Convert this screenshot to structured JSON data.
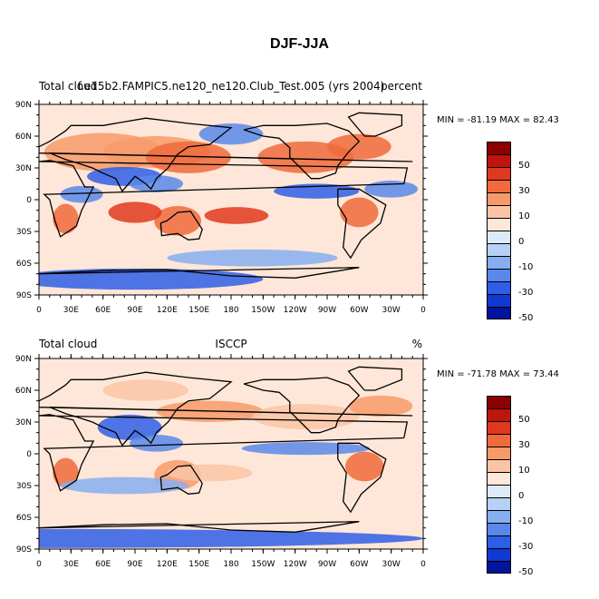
{
  "title": "DJF-JJA",
  "chart_data": [
    {
      "type": "heatmap",
      "panel_header_left": "Total cloud",
      "panel_header_center": "f.e15b2.FAMPIC5.ne120_ne120.Club_Test.005 (yrs 2004)",
      "panel_header_right": "percent",
      "min_label": "MIN = -81.19",
      "max_label": "MAX = 82.43",
      "x_ticks": [
        "0",
        "30E",
        "60E",
        "90E",
        "120E",
        "150E",
        "180",
        "150W",
        "120W",
        "90W",
        "60W",
        "30W",
        "0"
      ],
      "y_ticks": [
        "90N",
        "60N",
        "30N",
        "0",
        "30S",
        "60S",
        "90S"
      ],
      "xlim": [
        0,
        360
      ],
      "ylim": [
        -90,
        90
      ]
    },
    {
      "type": "heatmap",
      "panel_header_left": "Total cloud",
      "panel_header_center": "ISCCP",
      "panel_header_right": "%",
      "min_label": "MIN = -71.78",
      "max_label": "MAX = 73.44",
      "x_ticks": [
        "0",
        "30E",
        "60E",
        "90E",
        "120E",
        "150E",
        "180",
        "150W",
        "120W",
        "90W",
        "60W",
        "30W",
        "0"
      ],
      "y_ticks": [
        "90N",
        "60N",
        "30N",
        "0",
        "30S",
        "60S",
        "90S"
      ],
      "xlim": [
        0,
        360
      ],
      "ylim": [
        -90,
        90
      ]
    }
  ],
  "legend": {
    "labels": [
      "50",
      "30",
      "10",
      "0",
      "-10",
      "-30",
      "-50"
    ],
    "colors": [
      "#8b0000",
      "#c1140f",
      "#e0381e",
      "#f06a3c",
      "#f79a6a",
      "#fbc4a6",
      "#fee7d8",
      "#deeafa",
      "#b6d0f6",
      "#86aef0",
      "#5a88ea",
      "#2f5ee6",
      "#1238d2",
      "#00149c"
    ]
  }
}
